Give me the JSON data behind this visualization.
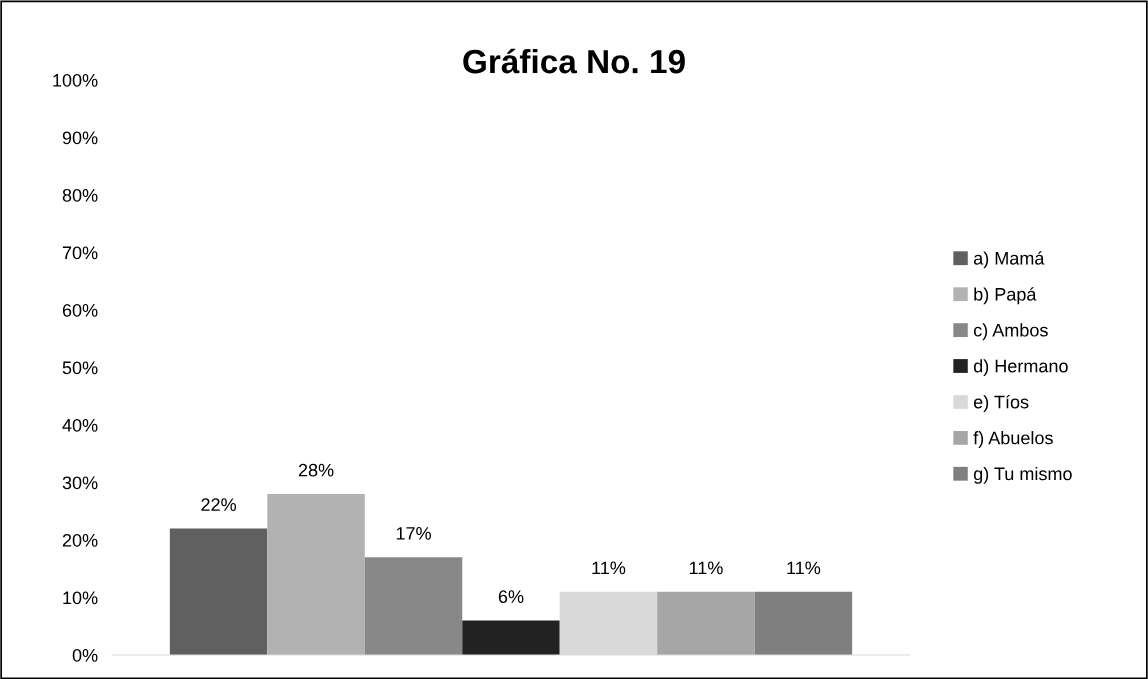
{
  "chart_data": {
    "type": "bar",
    "title": "Gráfica No. 19",
    "categories": [
      null
    ],
    "series": [
      {
        "name": "a) Mamá",
        "color": "#606060",
        "values": [
          22
        ],
        "value_labels": [
          "22%"
        ]
      },
      {
        "name": "b) Papá",
        "color": "#b2b2b2",
        "values": [
          28
        ],
        "value_labels": [
          "28%"
        ]
      },
      {
        "name": "c) Ambos",
        "color": "#888888",
        "values": [
          17
        ],
        "value_labels": [
          "17%"
        ]
      },
      {
        "name": "d) Hermano",
        "color": "#222222",
        "values": [
          6
        ],
        "value_labels": [
          "6%"
        ]
      },
      {
        "name": "e) Tíos",
        "color": "#d9d9d9",
        "values": [
          11
        ],
        "value_labels": [
          "11%"
        ]
      },
      {
        "name": "f) Abuelos",
        "color": "#a6a6a6",
        "values": [
          11
        ],
        "value_labels": [
          "11%"
        ]
      },
      {
        "name": "g) Tu mismo",
        "color": "#7f7f7f",
        "values": [
          11
        ],
        "value_labels": [
          "11%"
        ]
      }
    ],
    "ylim": [
      0,
      100
    ],
    "yticks": [
      {
        "value": 0,
        "label": "0%"
      },
      {
        "value": 10,
        "label": "10%"
      },
      {
        "value": 20,
        "label": "20%"
      },
      {
        "value": 30,
        "label": "30%"
      },
      {
        "value": 40,
        "label": "40%"
      },
      {
        "value": 50,
        "label": "50%"
      },
      {
        "value": 60,
        "label": "60%"
      },
      {
        "value": 70,
        "label": "70%"
      },
      {
        "value": 80,
        "label": "80%"
      },
      {
        "value": 90,
        "label": "90%"
      },
      {
        "value": 100,
        "label": "100%"
      }
    ],
    "grid": false,
    "legend": "right"
  }
}
